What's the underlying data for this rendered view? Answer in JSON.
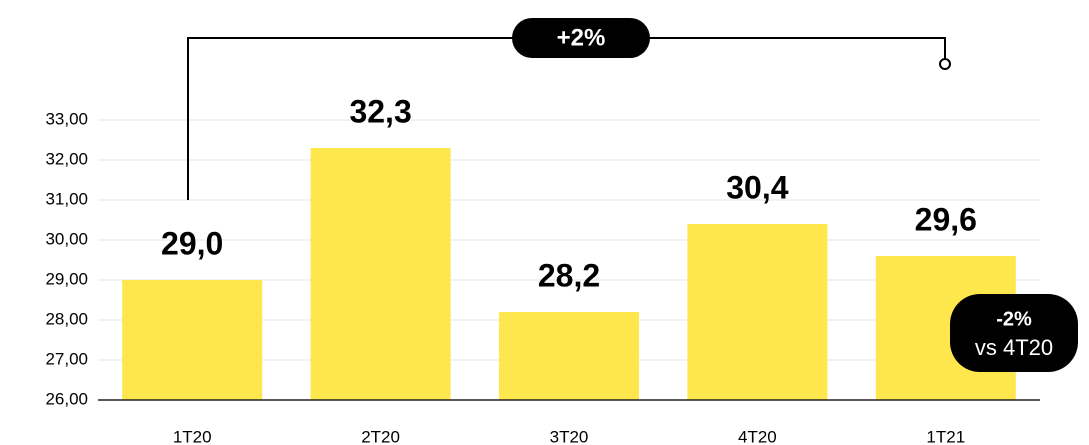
{
  "chart_data": {
    "type": "bar",
    "categories": [
      "1T20",
      "2T20",
      "3T20",
      "4T20",
      "1T21"
    ],
    "values": [
      29.0,
      32.3,
      28.2,
      30.4,
      29.6
    ],
    "value_labels": [
      "29,0",
      "32,3",
      "28,2",
      "30,4",
      "29,6"
    ],
    "color": "#fde74c",
    "ylim": [
      26,
      33
    ],
    "yticks": [
      {
        "value": 26,
        "label": "26,00"
      },
      {
        "value": 27,
        "label": "27,00"
      },
      {
        "value": 28,
        "label": "28,00"
      },
      {
        "value": 29,
        "label": "29,00"
      },
      {
        "value": 30,
        "label": "30,00"
      },
      {
        "value": 31,
        "label": "31,00"
      },
      {
        "value": 32,
        "label": "32,00"
      },
      {
        "value": 33,
        "label": "33,00"
      }
    ],
    "grid": true,
    "annotations": {
      "growth": "+2%",
      "change": "-2%",
      "change_note": "vs 4T20"
    }
  }
}
